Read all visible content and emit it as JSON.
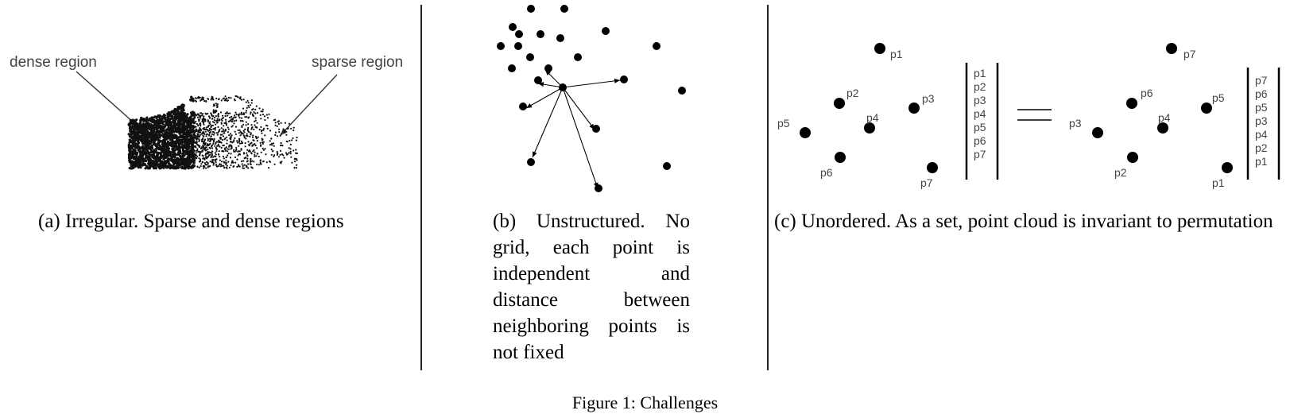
{
  "panel_a": {
    "label_dense": "dense region",
    "label_sparse": "sparse region",
    "caption": "(a) Irregular. Sparse and dense regions"
  },
  "panel_b": {
    "caption": "(b) Unstructured. No grid, each point is independent and distance between neighboring points is not fixed"
  },
  "panel_c": {
    "left_points": [
      {
        "name": "p1"
      },
      {
        "name": "p2"
      },
      {
        "name": "p3"
      },
      {
        "name": "p4"
      },
      {
        "name": "p5"
      },
      {
        "name": "p6"
      },
      {
        "name": "p7"
      }
    ],
    "left_list": [
      "p1",
      "p2",
      "p3",
      "p4",
      "p5",
      "p6",
      "p7"
    ],
    "right_points": [
      {
        "name": "p7"
      },
      {
        "name": "p6"
      },
      {
        "name": "p5"
      },
      {
        "name": "p3"
      },
      {
        "name": "p4"
      },
      {
        "name": "p2"
      },
      {
        "name": "p1"
      }
    ],
    "right_list": [
      "p7",
      "p6",
      "p5",
      "p3",
      "p4",
      "p2",
      "p1"
    ],
    "caption": "(c) Unordered. As a set, point cloud is invariant to permutation"
  },
  "figure_caption": "Figure 1: Challenges"
}
